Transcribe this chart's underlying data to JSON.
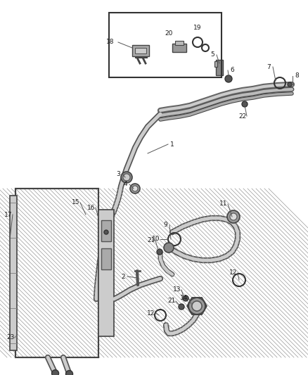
{
  "bg_color": "#ffffff",
  "fig_width": 4.38,
  "fig_height": 5.33,
  "dpi": 100,
  "line_color": "#1a1a1a"
}
